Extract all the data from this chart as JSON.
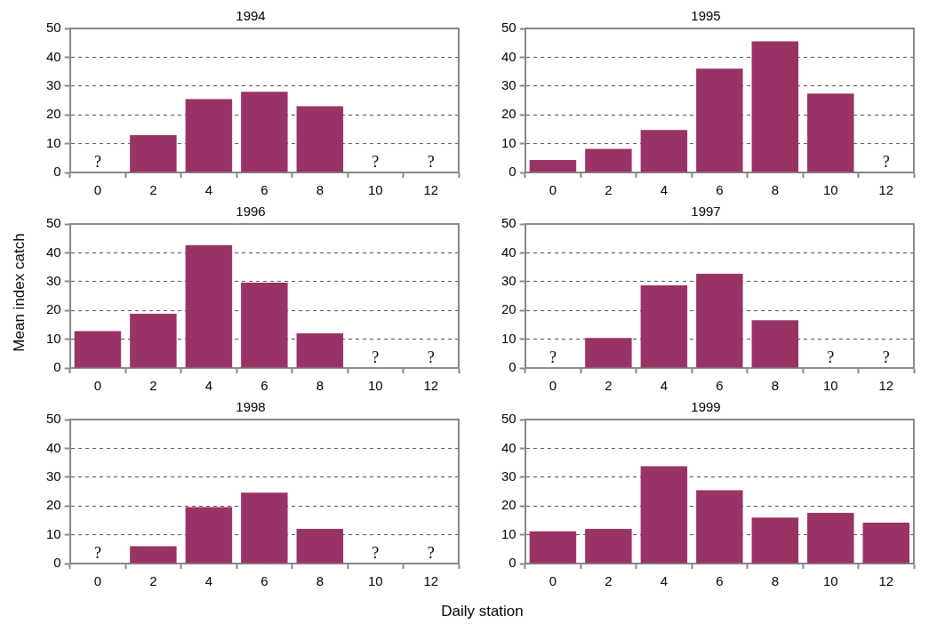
{
  "chart_data": [
    {
      "type": "bar",
      "title": "1994",
      "categories": [
        "0",
        "2",
        "4",
        "6",
        "8",
        "10",
        "12"
      ],
      "values": [
        null,
        13,
        25.5,
        28,
        23,
        null,
        null
      ],
      "color": "#993366",
      "ylim": [
        0,
        50
      ],
      "yticks": [
        0,
        10,
        20,
        30,
        40,
        50
      ],
      "grid": "y",
      "annotations": [
        "?",
        "?",
        "?"
      ]
    },
    {
      "type": "bar",
      "title": "1995",
      "categories": [
        "0",
        "2",
        "4",
        "6",
        "8",
        "10",
        "12"
      ],
      "values": [
        4.3,
        8.2,
        14.7,
        36,
        45.5,
        27.4,
        null
      ],
      "color": "#993366",
      "ylim": [
        0,
        50
      ],
      "yticks": [
        0,
        10,
        20,
        30,
        40,
        50
      ],
      "grid": "y",
      "annotations": [
        "?"
      ]
    },
    {
      "type": "bar",
      "title": "1996",
      "ylabel": "Mean index catch",
      "categories": [
        "0",
        "2",
        "4",
        "6",
        "8",
        "10",
        "12"
      ],
      "values": [
        12.8,
        18.8,
        42.7,
        29.6,
        12,
        null,
        null
      ],
      "color": "#993366",
      "ylim": [
        0,
        50
      ],
      "yticks": [
        0,
        10,
        20,
        30,
        40,
        50
      ],
      "grid": "y",
      "annotations": [
        "?",
        "?"
      ]
    },
    {
      "type": "bar",
      "title": "1997",
      "categories": [
        "0",
        "2",
        "4",
        "6",
        "8",
        "10",
        "12"
      ],
      "values": [
        null,
        10.4,
        28.7,
        32.7,
        16.6,
        null,
        null
      ],
      "color": "#993366",
      "ylim": [
        0,
        50
      ],
      "yticks": [
        0,
        10,
        20,
        30,
        40,
        50
      ],
      "grid": "y",
      "annotations": [
        "?",
        "?",
        "?"
      ]
    },
    {
      "type": "bar",
      "title": "1998",
      "xlabel": "Daily station",
      "categories": [
        "0",
        "2",
        "4",
        "6",
        "8",
        "10",
        "12"
      ],
      "values": [
        null,
        6,
        19.6,
        24.6,
        12,
        null,
        null
      ],
      "color": "#993366",
      "ylim": [
        0,
        50
      ],
      "yticks": [
        0,
        10,
        20,
        30,
        40,
        50
      ],
      "grid": "y",
      "annotations": [
        "?",
        "?",
        "?"
      ]
    },
    {
      "type": "bar",
      "title": "1999",
      "categories": [
        "0",
        "2",
        "4",
        "6",
        "8",
        "10",
        "12"
      ],
      "values": [
        11.2,
        12,
        33.8,
        25.5,
        16,
        17.6,
        14.2
      ],
      "color": "#993366",
      "ylim": [
        0,
        50
      ],
      "yticks": [
        0,
        10,
        20,
        30,
        40,
        50
      ],
      "grid": "y"
    }
  ]
}
